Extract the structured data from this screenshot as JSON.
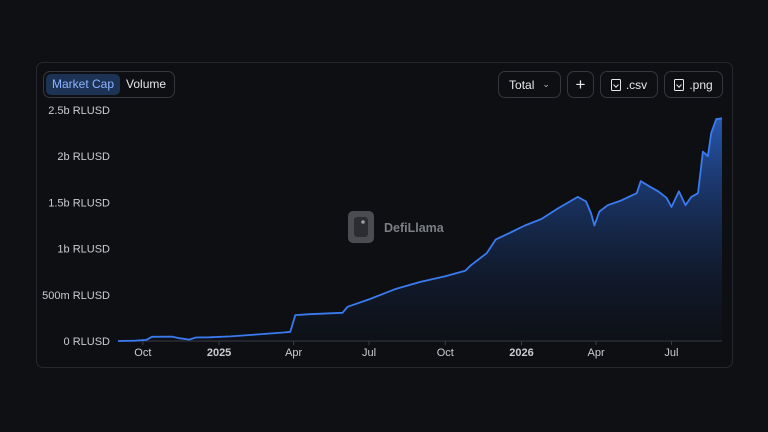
{
  "toolbar": {
    "tabs": [
      {
        "label": "Market Cap",
        "active": true
      },
      {
        "label": "Volume",
        "active": false
      }
    ],
    "total_label": "Total",
    "add_label": "+",
    "csv_label": ".csv",
    "png_label": ".png"
  },
  "watermark": {
    "text": "DefiLlama"
  },
  "colors": {
    "line": "#3a7bf0",
    "background": "#0e0f12",
    "active_tab": "#1c3356"
  },
  "chart_data": {
    "type": "area",
    "ylim": [
      0,
      2500000000
    ],
    "y_ticks": [
      {
        "value": 0,
        "label": "0 RLUSD"
      },
      {
        "value": 500000000,
        "label": "500m RLUSD"
      },
      {
        "value": 1000000000,
        "label": "1b RLUSD"
      },
      {
        "value": 1500000000,
        "label": "1.5b RLUSD"
      },
      {
        "value": 2000000000,
        "label": "2b RLUSD"
      },
      {
        "value": 2500000000,
        "label": "2.5b RLUSD"
      }
    ],
    "x_ticks": [
      {
        "date": "2024-10-01",
        "label": "Oct",
        "bold": false
      },
      {
        "date": "2025-01-01",
        "label": "2025",
        "bold": true
      },
      {
        "date": "2025-04-01",
        "label": "Apr",
        "bold": false
      },
      {
        "date": "2025-07-01",
        "label": "Jul",
        "bold": false
      },
      {
        "date": "2025-10-01",
        "label": "Oct",
        "bold": false
      },
      {
        "date": "2026-01-01",
        "label": "2026",
        "bold": true
      },
      {
        "date": "2026-04-01",
        "label": "Apr",
        "bold": false
      },
      {
        "date": "2026-07-01",
        "label": "Jul",
        "bold": false
      }
    ],
    "xlim": [
      "2024-09-01",
      "2026-08-31"
    ],
    "series": [
      {
        "values": [
          [
            "2024-09-01",
            0
          ],
          [
            "2024-09-22",
            3000000
          ],
          [
            "2024-10-05",
            12000000
          ],
          [
            "2024-10-12",
            45000000
          ],
          [
            "2024-11-05",
            48000000
          ],
          [
            "2024-11-14",
            30000000
          ],
          [
            "2024-11-26",
            15000000
          ],
          [
            "2024-12-04",
            38000000
          ],
          [
            "2024-12-20",
            40000000
          ],
          [
            "2025-01-15",
            50000000
          ],
          [
            "2025-02-15",
            70000000
          ],
          [
            "2025-03-20",
            92000000
          ],
          [
            "2025-03-28",
            100000000
          ],
          [
            "2025-04-03",
            280000000
          ],
          [
            "2025-04-20",
            290000000
          ],
          [
            "2025-05-15",
            300000000
          ],
          [
            "2025-05-30",
            305000000
          ],
          [
            "2025-06-05",
            370000000
          ],
          [
            "2025-07-01",
            450000000
          ],
          [
            "2025-08-01",
            560000000
          ],
          [
            "2025-09-01",
            640000000
          ],
          [
            "2025-10-01",
            700000000
          ],
          [
            "2025-10-25",
            760000000
          ],
          [
            "2025-11-01",
            820000000
          ],
          [
            "2025-11-20",
            950000000
          ],
          [
            "2025-12-01",
            1100000000
          ],
          [
            "2025-12-20",
            1180000000
          ],
          [
            "2026-01-05",
            1250000000
          ],
          [
            "2026-01-25",
            1320000000
          ],
          [
            "2026-02-15",
            1440000000
          ],
          [
            "2026-03-10",
            1560000000
          ],
          [
            "2026-03-20",
            1510000000
          ],
          [
            "2026-03-26",
            1380000000
          ],
          [
            "2026-03-30",
            1250000000
          ],
          [
            "2026-04-05",
            1400000000
          ],
          [
            "2026-04-15",
            1470000000
          ],
          [
            "2026-05-01",
            1520000000
          ],
          [
            "2026-05-20",
            1600000000
          ],
          [
            "2026-05-25",
            1730000000
          ],
          [
            "2026-06-05",
            1670000000
          ],
          [
            "2026-06-15",
            1620000000
          ],
          [
            "2026-06-25",
            1550000000
          ],
          [
            "2026-07-01",
            1450000000
          ],
          [
            "2026-07-10",
            1620000000
          ],
          [
            "2026-07-18",
            1470000000
          ],
          [
            "2026-07-25",
            1560000000
          ],
          [
            "2026-08-02",
            1600000000
          ],
          [
            "2026-08-08",
            2050000000
          ],
          [
            "2026-08-14",
            2000000000
          ],
          [
            "2026-08-18",
            2250000000
          ],
          [
            "2026-08-24",
            2400000000
          ],
          [
            "2026-08-31",
            2410000000
          ]
        ]
      }
    ]
  }
}
